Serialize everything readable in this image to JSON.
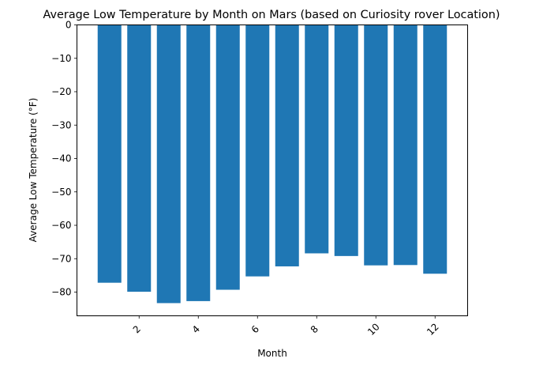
{
  "chart_data": {
    "type": "bar",
    "title": "Average Low Temperature by Month on Mars (based on Curiosity rover Location)",
    "xlabel": "Month",
    "ylabel": "Average Low Temperature (°F)",
    "x": [
      1,
      2,
      3,
      4,
      5,
      6,
      7,
      8,
      9,
      10,
      11,
      12
    ],
    "values": [
      -77.2,
      -79.9,
      -83.3,
      -82.7,
      -79.3,
      -75.3,
      -72.3,
      -68.4,
      -69.2,
      -72.0,
      -71.9,
      -74.5
    ],
    "xlim": [
      -0.1,
      13.1
    ],
    "ylim": [
      -87.1,
      0
    ],
    "xticks": [
      2,
      4,
      6,
      8,
      10,
      12
    ],
    "xtick_labels": [
      "2",
      "4",
      "6",
      "8",
      "10",
      "12"
    ],
    "yticks": [
      0,
      -10,
      -20,
      -30,
      -40,
      -50,
      -60,
      -70,
      -80
    ],
    "ytick_labels": [
      "0",
      "−10",
      "−20",
      "−30",
      "−40",
      "−50",
      "−60",
      "−70",
      "−80"
    ],
    "bar_color": "#1f77b4",
    "grid": false,
    "legend": "none"
  }
}
